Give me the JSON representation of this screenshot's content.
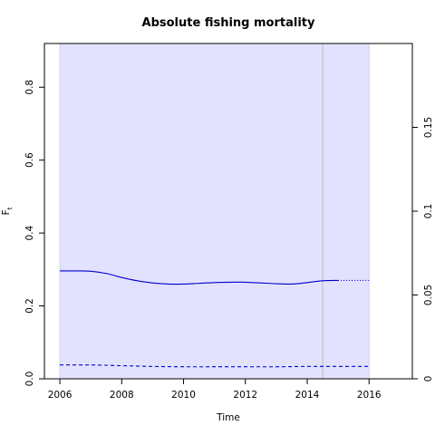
{
  "chart_data": {
    "type": "line",
    "title": "Absolute fishing mortality",
    "xlabel": "Time",
    "ylabel": "F",
    "ylabel_sub": "t",
    "xlim": [
      2005.5,
      2017.4
    ],
    "ylim": [
      0,
      0.92
    ],
    "ylim_right": [
      0,
      0.2
    ],
    "xticks": [
      2006,
      2008,
      2010,
      2012,
      2014,
      2016
    ],
    "xtick_labels": [
      "2006",
      "2008",
      "2010",
      "2012",
      "2014",
      "2016"
    ],
    "yticks": [
      0.0,
      0.2,
      0.4,
      0.6,
      0.8
    ],
    "ytick_labels": [
      "0.0",
      "0.2",
      "0.4",
      "0.6",
      "0.8"
    ],
    "yticks_right": [
      0,
      0.05,
      0.1,
      0.15
    ],
    "ytick_labels_right": [
      "0",
      "0.05",
      "0.1",
      "0.15"
    ],
    "shaded_band": {
      "x": [
        2006,
        2016
      ],
      "y": [
        0,
        0.92
      ],
      "color": "#e2e2ff"
    },
    "vertical_line": {
      "x": 2014.5,
      "color": "#bbbbbb"
    },
    "series": [
      {
        "style": "solid",
        "color": "#0000cc",
        "x": [
          2006,
          2006.5,
          2007,
          2007.5,
          2008,
          2008.5,
          2009,
          2009.5,
          2010,
          2010.5,
          2011,
          2011.5,
          2012,
          2012.5,
          2013,
          2013.5,
          2014,
          2014.5,
          2015
        ],
        "values": [
          0.296,
          0.296,
          0.295,
          0.289,
          0.278,
          0.269,
          0.263,
          0.26,
          0.26,
          0.262,
          0.264,
          0.265,
          0.265,
          0.263,
          0.261,
          0.26,
          0.264,
          0.269,
          0.27
        ]
      },
      {
        "style": "dotted",
        "color": "#0000cc",
        "x": [
          2015,
          2016
        ],
        "values": [
          0.27,
          0.27
        ]
      },
      {
        "style": "dashed",
        "color": "#0000cc",
        "x": [
          2006,
          2007,
          2008,
          2009,
          2010,
          2011,
          2012,
          2013,
          2014,
          2015,
          2016
        ],
        "values": [
          0.038,
          0.038,
          0.036,
          0.034,
          0.033,
          0.033,
          0.033,
          0.033,
          0.034,
          0.034,
          0.034
        ]
      }
    ]
  }
}
